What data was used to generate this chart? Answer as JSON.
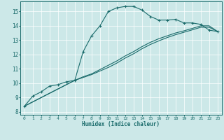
{
  "title": "",
  "xlabel": "Humidex (Indice chaleur)",
  "ylabel": "",
  "bg_color": "#cce8e8",
  "line_color": "#1a6b6b",
  "grid_color": "#ffffff",
  "xlim": [
    -0.5,
    23.5
  ],
  "ylim": [
    7.8,
    15.7
  ],
  "yticks": [
    8,
    9,
    10,
    11,
    12,
    13,
    14,
    15
  ],
  "xticks": [
    0,
    1,
    2,
    3,
    4,
    5,
    6,
    7,
    8,
    9,
    10,
    11,
    12,
    13,
    14,
    15,
    16,
    17,
    18,
    19,
    20,
    21,
    22,
    23
  ],
  "line1_x": [
    0,
    1,
    2,
    3,
    4,
    5,
    6,
    7,
    8,
    9,
    10,
    11,
    12,
    13,
    14,
    15,
    16,
    17,
    18,
    19,
    20,
    21,
    22,
    23
  ],
  "line1_y": [
    8.4,
    9.1,
    9.4,
    9.8,
    9.9,
    10.1,
    10.2,
    12.2,
    13.3,
    14.0,
    15.0,
    15.25,
    15.35,
    15.35,
    15.1,
    14.65,
    14.4,
    14.4,
    14.45,
    14.2,
    14.2,
    14.1,
    13.7,
    13.6
  ],
  "line2_x": [
    0,
    6,
    7,
    8,
    9,
    10,
    11,
    12,
    13,
    14,
    15,
    16,
    17,
    18,
    19,
    20,
    21,
    22,
    23
  ],
  "line2_y": [
    8.4,
    10.2,
    10.45,
    10.65,
    10.95,
    11.25,
    11.55,
    11.9,
    12.2,
    12.55,
    12.85,
    13.1,
    13.3,
    13.5,
    13.65,
    13.82,
    14.0,
    14.0,
    13.6
  ],
  "line3_x": [
    0,
    6,
    7,
    8,
    9,
    10,
    11,
    12,
    13,
    14,
    15,
    16,
    17,
    18,
    19,
    20,
    21,
    22,
    23
  ],
  "line3_y": [
    8.4,
    10.2,
    10.4,
    10.6,
    10.85,
    11.1,
    11.4,
    11.75,
    12.05,
    12.4,
    12.7,
    12.95,
    13.18,
    13.38,
    13.55,
    13.72,
    13.9,
    13.9,
    13.6
  ]
}
